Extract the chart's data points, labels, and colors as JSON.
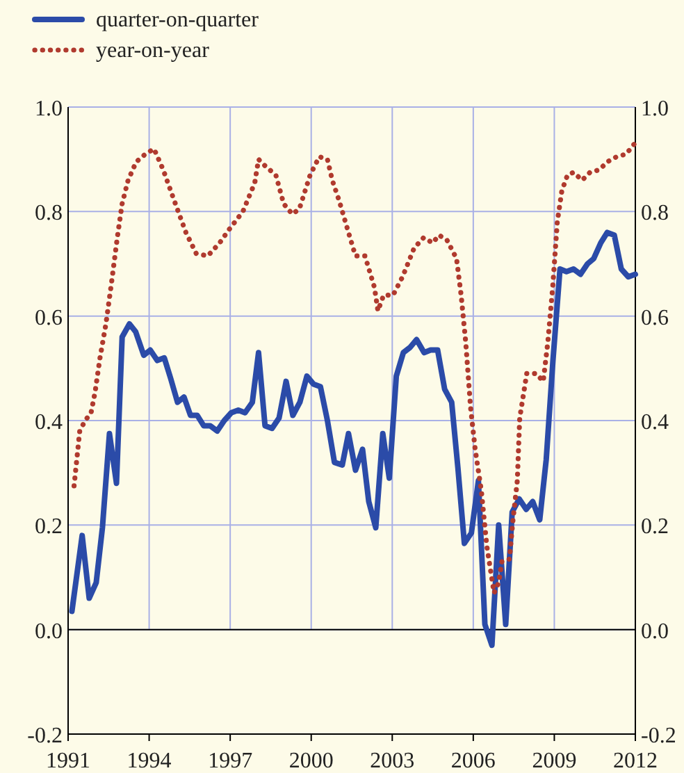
{
  "chart_data": {
    "type": "line",
    "xlim": [
      1991,
      2012
    ],
    "xticks": [
      1991,
      1994,
      1997,
      2000,
      2003,
      2006,
      2009,
      2012
    ],
    "ylim": [
      -0.2,
      1.0
    ],
    "yticks": [
      {
        "value": -0.2,
        "label": "-0.2"
      },
      {
        "value": 0,
        "label": "0.0"
      },
      {
        "value": 0.2,
        "label": "0.2"
      },
      {
        "value": 0.4,
        "label": "0.4"
      },
      {
        "value": 0.6,
        "label": "0.6"
      },
      {
        "value": 0.8,
        "label": "0.8"
      },
      {
        "value": 1,
        "label": "1.0"
      }
    ],
    "y2lim": [
      -0.2,
      1.0
    ],
    "y2ticks": [
      {
        "value": -0.2,
        "label": "-0.2"
      },
      {
        "value": 0,
        "label": "0.0"
      },
      {
        "value": 0.2,
        "label": "0.2"
      },
      {
        "value": 0.4,
        "label": "0.4"
      },
      {
        "value": 0.6,
        "label": "0.6"
      },
      {
        "value": 0.8,
        "label": "0.8"
      },
      {
        "value": 1,
        "label": "1.0"
      }
    ],
    "grid": true,
    "legend": "top left",
    "ref_lines": [
      {
        "axis": "y",
        "value": 0,
        "color": "#000000",
        "line_style": "solid"
      }
    ],
    "series": [
      {
        "name": "quarter-on-quarter",
        "color": "#2b4ba8",
        "line_style": "solid",
        "x": [
          1991.14,
          1991.52,
          1991.78,
          1992.04,
          1992.27,
          1992.53,
          1992.79,
          1993.0,
          1993.27,
          1993.5,
          1993.8,
          1994.04,
          1994.3,
          1994.56,
          1994.8,
          1995.05,
          1995.29,
          1995.53,
          1995.78,
          1996.02,
          1996.26,
          1996.52,
          1996.78,
          1997.04,
          1997.3,
          1997.55,
          1997.82,
          1998.05,
          1998.29,
          1998.55,
          1998.81,
          1999.07,
          1999.32,
          1999.58,
          1999.84,
          2000.08,
          2000.34,
          2000.6,
          2000.86,
          2001.15,
          2001.38,
          2001.64,
          2001.9,
          2002.13,
          2002.39,
          2002.65,
          2002.89,
          2003.15,
          2003.41,
          2003.66,
          2003.9,
          2004.18,
          2004.42,
          2004.68,
          2004.94,
          2005.2,
          2005.43,
          2005.67,
          2005.93,
          2006.19,
          2006.43,
          2006.69,
          2006.94,
          2007.2,
          2007.44,
          2007.7,
          2007.96,
          2008.2,
          2008.46,
          2008.7,
          2008.95,
          2009.21,
          2009.45,
          2009.71,
          2009.97,
          2010.23,
          2010.46,
          2010.72,
          2010.96,
          2011.22,
          2011.48,
          2011.74,
          2012.0
        ],
        "values": [
          0.035,
          0.18,
          0.06,
          0.09,
          0.195,
          0.375,
          0.28,
          0.56,
          0.585,
          0.57,
          0.525,
          0.535,
          0.515,
          0.52,
          0.48,
          0.435,
          0.445,
          0.41,
          0.41,
          0.39,
          0.39,
          0.38,
          0.4,
          0.415,
          0.42,
          0.415,
          0.435,
          0.53,
          0.39,
          0.385,
          0.405,
          0.475,
          0.41,
          0.435,
          0.485,
          0.47,
          0.465,
          0.4,
          0.32,
          0.315,
          0.375,
          0.305,
          0.345,
          0.245,
          0.195,
          0.375,
          0.29,
          0.485,
          0.53,
          0.54,
          0.555,
          0.53,
          0.535,
          0.535,
          0.46,
          0.435,
          0.31,
          0.165,
          0.185,
          0.285,
          0.01,
          -0.03,
          0.2,
          0.01,
          0.225,
          0.25,
          0.23,
          0.245,
          0.21,
          0.325,
          0.515,
          0.69,
          0.685,
          0.69,
          0.68,
          0.7,
          0.71,
          0.74,
          0.76,
          0.755,
          0.69,
          0.675,
          0.68
        ]
      },
      {
        "name": "year-on-year",
        "color": "#b03a2e",
        "line_style": "dotted",
        "x": [
          1991.22,
          1991.43,
          1991.63,
          1991.85,
          1992.0,
          1992.18,
          1992.4,
          1992.61,
          1992.82,
          1993.0,
          1993.22,
          1993.52,
          1993.86,
          1994.18,
          1994.52,
          1994.9,
          1995.36,
          1995.74,
          1996.17,
          1996.61,
          1996.95,
          1997.47,
          1997.91,
          1998.05,
          1998.34,
          1998.69,
          1998.98,
          1999.3,
          1999.56,
          1999.96,
          2000.3,
          2000.6,
          2000.78,
          2001.04,
          2001.38,
          2001.64,
          2001.99,
          2002.34,
          2002.47,
          2002.68,
          2003.03,
          2003.38,
          2003.81,
          2004.16,
          2004.5,
          2004.73,
          2005.03,
          2005.38,
          2005.55,
          2005.72,
          2005.9,
          2006.07,
          2006.3,
          2006.5,
          2006.77,
          2006.94,
          2007.06,
          2007.34,
          2007.46,
          2007.63,
          2007.72,
          2007.98,
          2008.33,
          2008.59,
          2008.76,
          2008.94,
          2009.11,
          2009.28,
          2009.49,
          2009.71,
          2010.03,
          2010.32,
          2010.67,
          2010.96,
          2011.31,
          2011.66,
          2011.97
        ],
        "values": [
          0.275,
          0.38,
          0.4,
          0.415,
          0.455,
          0.52,
          0.585,
          0.665,
          0.75,
          0.815,
          0.86,
          0.895,
          0.91,
          0.92,
          0.88,
          0.825,
          0.76,
          0.72,
          0.715,
          0.74,
          0.765,
          0.8,
          0.855,
          0.9,
          0.885,
          0.87,
          0.815,
          0.795,
          0.805,
          0.87,
          0.905,
          0.9,
          0.86,
          0.82,
          0.76,
          0.715,
          0.715,
          0.655,
          0.61,
          0.64,
          0.64,
          0.675,
          0.73,
          0.75,
          0.74,
          0.755,
          0.745,
          0.71,
          0.64,
          0.55,
          0.425,
          0.345,
          0.265,
          0.16,
          0.07,
          0.09,
          0.13,
          0.135,
          0.205,
          0.285,
          0.405,
          0.49,
          0.49,
          0.475,
          0.55,
          0.655,
          0.78,
          0.84,
          0.87,
          0.875,
          0.86,
          0.875,
          0.88,
          0.895,
          0.905,
          0.91,
          0.93
        ]
      }
    ]
  }
}
